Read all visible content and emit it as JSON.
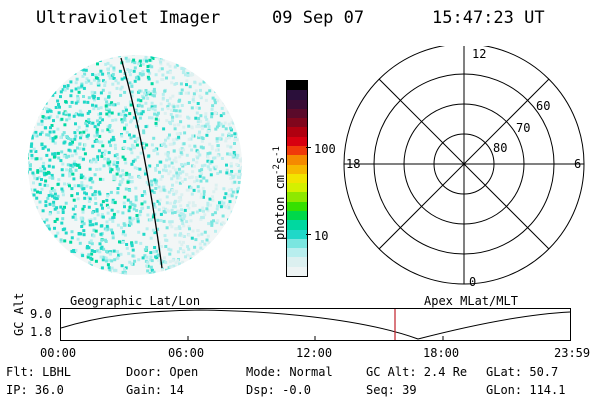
{
  "header": {
    "title": "Ultraviolet Imager",
    "date": "09 Sep 07",
    "time": "15:47:23 UT"
  },
  "colorbar": {
    "label": "photon cm",
    "label_exp1": "-2",
    "label_mid": "s",
    "label_exp2": "-1",
    "ticks": [
      "100",
      "10"
    ],
    "colors": [
      "#000000",
      "#2a0f3a",
      "#3a0d35",
      "#5a0a2a",
      "#80061c",
      "#b00010",
      "#d80010",
      "#f03a0a",
      "#f58a00",
      "#f7b800",
      "#f2e400",
      "#d4f000",
      "#8ee800",
      "#35e000",
      "#00d84a",
      "#00d8a0",
      "#20d8c8",
      "#7ae6e0",
      "#b8eeee",
      "#dcf0f0",
      "#eef4f4"
    ]
  },
  "polar": {
    "labels": {
      "top": "12",
      "bottom": "0",
      "left": "18",
      "right": "6"
    },
    "rings": [
      "60",
      "70",
      "80"
    ]
  },
  "altitude_plot": {
    "ylabel": "GC Alt",
    "y_ticks": [
      "9.0",
      "1.8"
    ],
    "left_caption": "Geographic Lat/Lon",
    "right_caption": "Apex MLat/MLT",
    "x_ticks": [
      "00:00",
      "06:00",
      "12:00",
      "18:00",
      "23:59"
    ]
  },
  "info": {
    "filter": "Flt: LBHL",
    "door": "Door: Open",
    "mode": "Mode: Normal",
    "gc_alt": "GC Alt: 2.4 Re",
    "glat": "GLat:  50.7",
    "ip": "IP: 36.0",
    "gain": "Gain: 14",
    "dsp": "Dsp:   -0.0",
    "seq": "Seq: 39",
    "glon": "GLon: 114.1"
  }
}
